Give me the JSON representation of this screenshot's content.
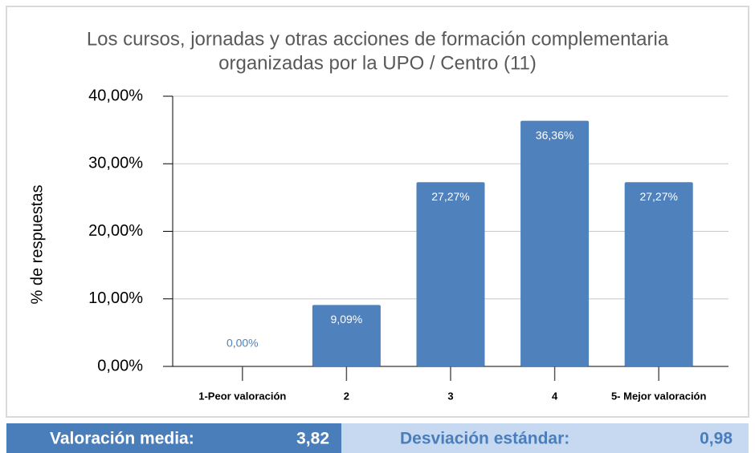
{
  "chart_data": {
    "type": "bar",
    "title": [
      "Los cursos, jornadas y otras acciones de formación complementaria",
      "organizadas por la UPO / Centro (11)"
    ],
    "ylabel": "% de respuestas",
    "categories": [
      "1-Peor valoración",
      "2",
      "3",
      "4",
      "5- Mejor valoración"
    ],
    "values": [
      0,
      9.09,
      27.27,
      36.36,
      27.27
    ],
    "value_labels": [
      "0,00%",
      "9,09%",
      "27,27%",
      "36,36%",
      "27,27%"
    ],
    "color": "#4f81bd",
    "ylim": [
      0,
      40
    ],
    "yticks": [
      {
        "value": 0,
        "label": "0,00%"
      },
      {
        "value": 10,
        "label": "10,00%"
      },
      {
        "value": 20,
        "label": "20,00%"
      },
      {
        "value": 30,
        "label": "30,00%"
      },
      {
        "value": 40,
        "label": "40,00%"
      }
    ],
    "grid": true
  },
  "summary": {
    "mean_label": "Valoración media:",
    "mean": "3,82",
    "sd_label": "Desviación estándar:",
    "sd": "0,98"
  }
}
